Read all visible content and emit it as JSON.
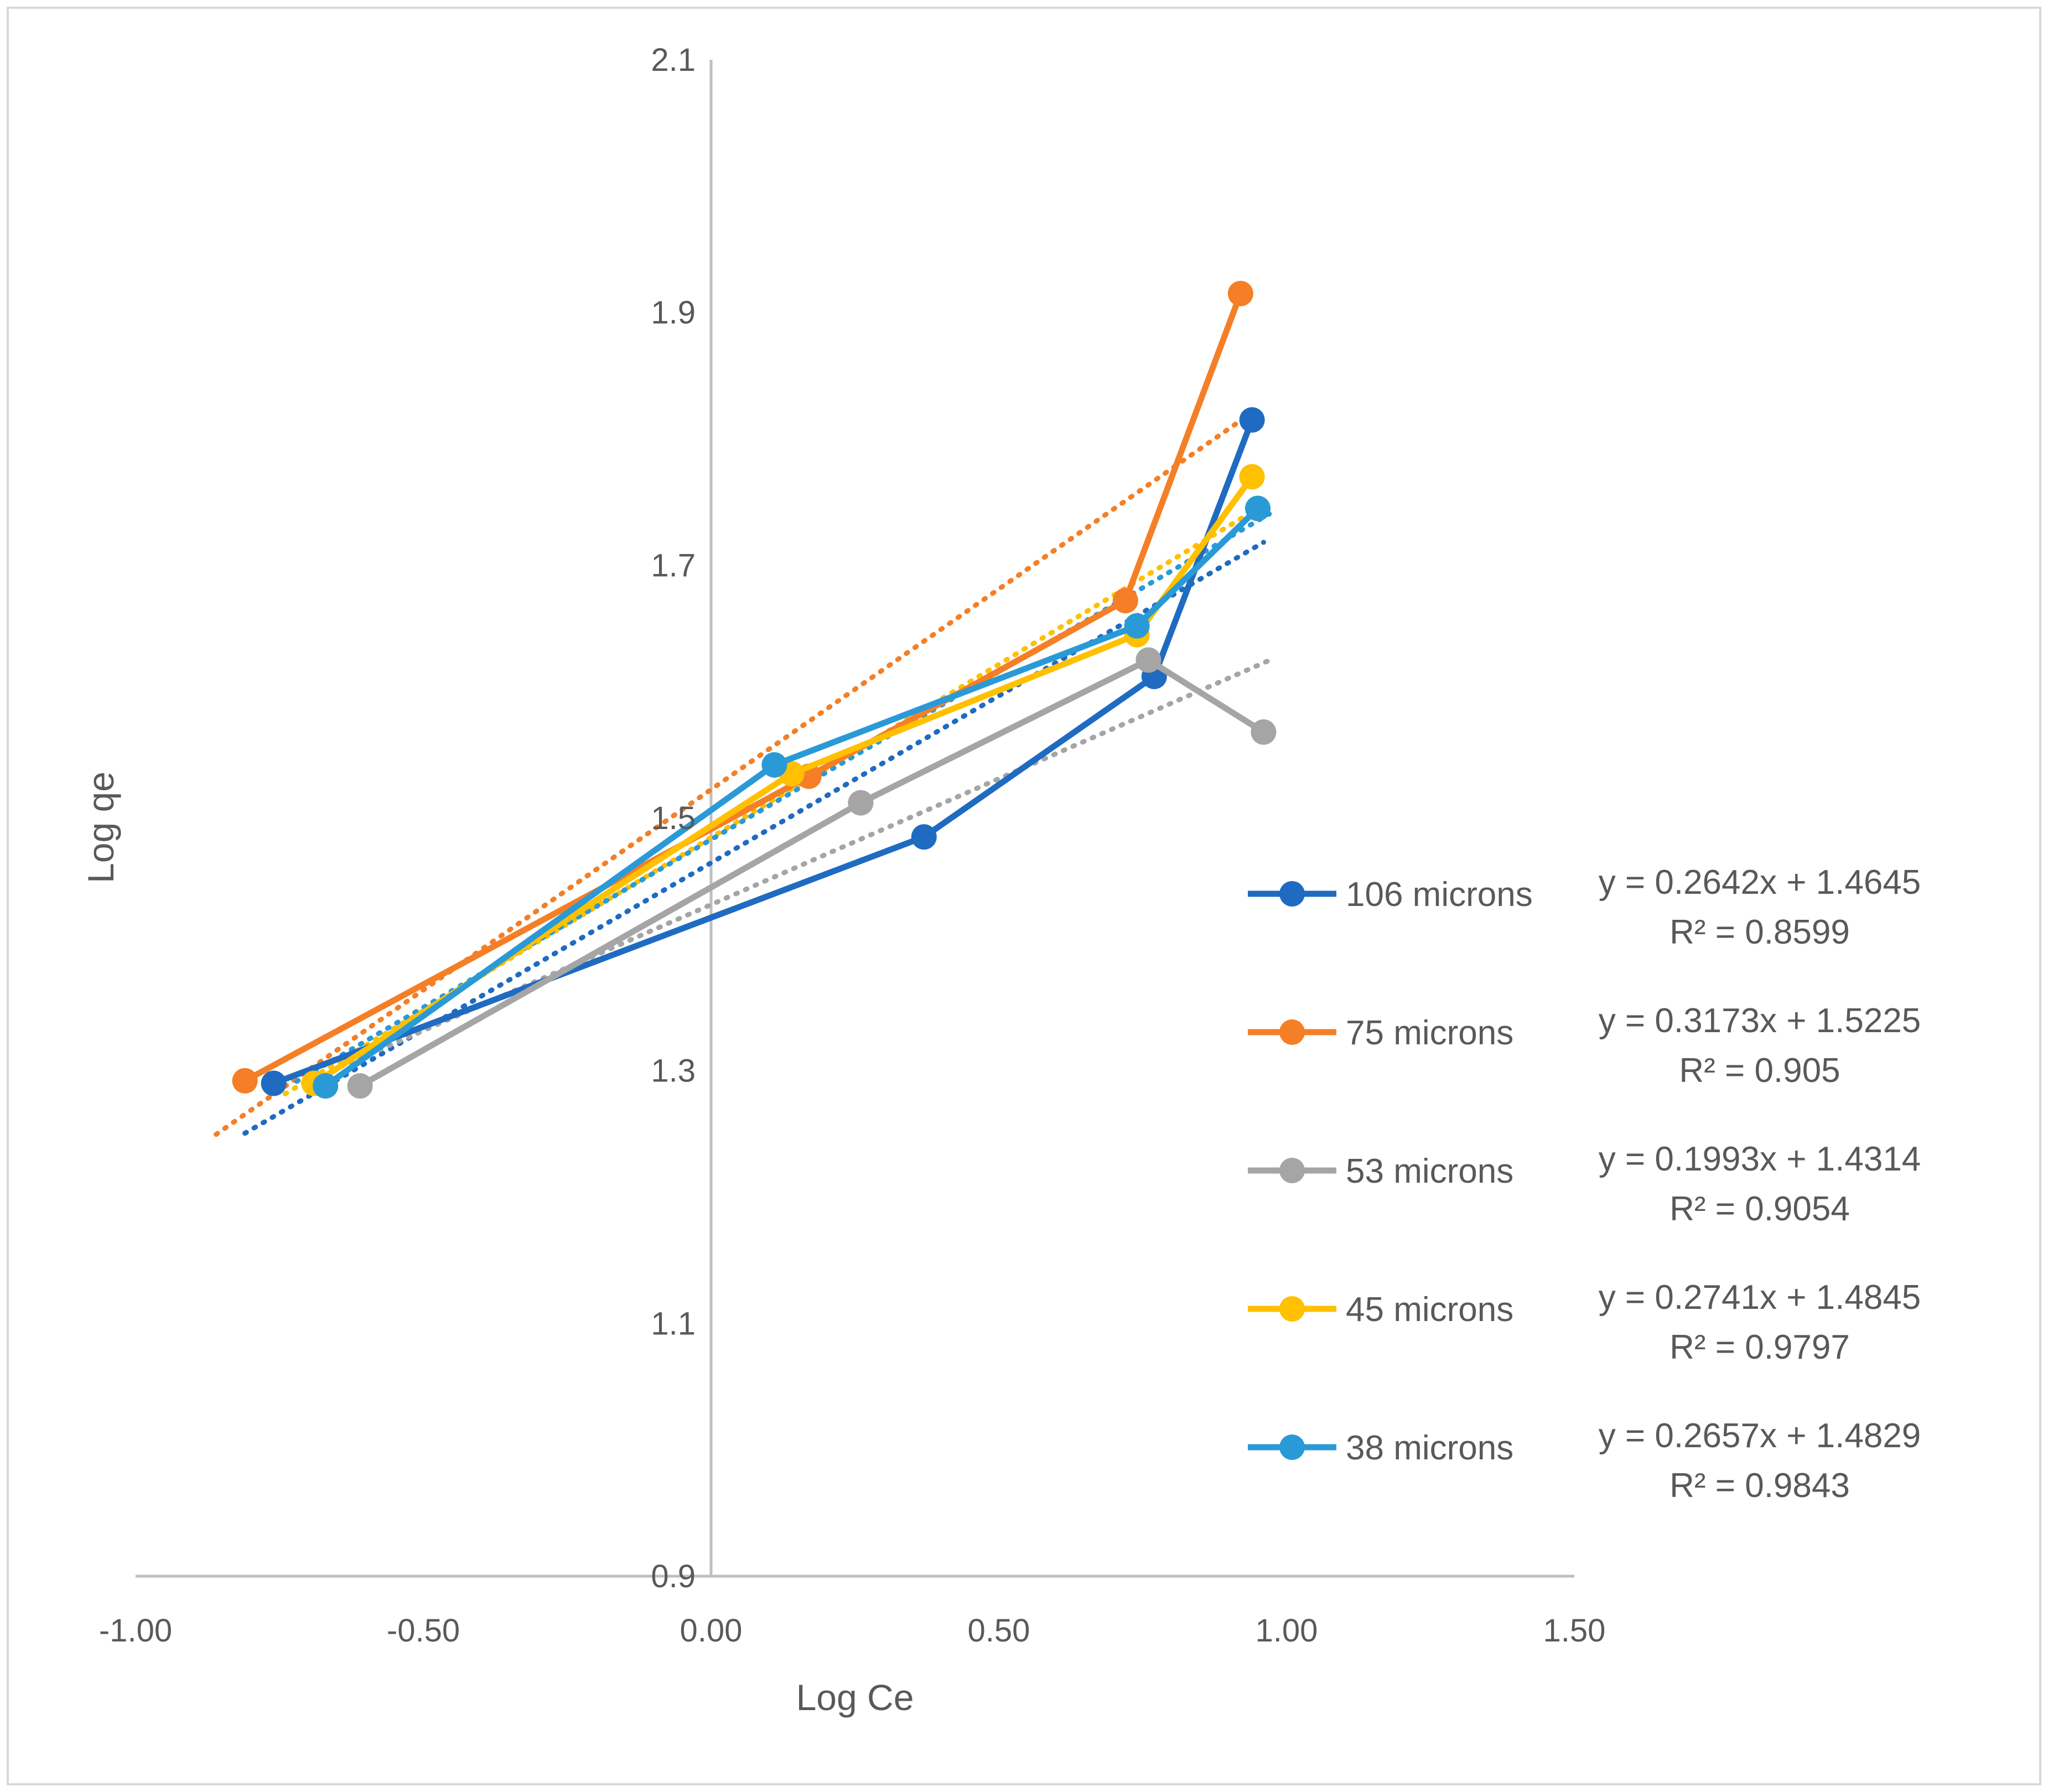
{
  "chart_data": {
    "type": "scatter",
    "title": "",
    "xlabel": "Log Ce",
    "ylabel": "Log qe",
    "xlim": [
      -1.0,
      1.5
    ],
    "ylim": [
      0.9,
      2.1
    ],
    "x_ticks": [
      -1.0,
      -0.5,
      0.0,
      0.5,
      1.0,
      1.5
    ],
    "x_tick_labels": [
      "-1.00",
      "-0.50",
      "0.00",
      "0.50",
      "1.00",
      "1.50"
    ],
    "y_ticks": [
      0.9,
      1.1,
      1.3,
      1.5,
      1.7,
      1.9,
      2.1
    ],
    "y_tick_labels": [
      "0.9",
      "1.1",
      "1.3",
      "1.5",
      "1.7",
      "1.9",
      "2.1"
    ],
    "grid": false,
    "legend_position": "right",
    "series": [
      {
        "name": "106 microns",
        "color": "#1F6BC1",
        "x": [
          -0.76,
          0.37,
          0.77,
          0.94
        ],
        "y": [
          1.29,
          1.485,
          1.612,
          1.815
        ],
        "trendline": {
          "type": "linear",
          "slope": 0.2642,
          "intercept": 1.4645
        },
        "equation": "y = 0.2642x + 1.4645",
        "r2": "R² = 0.8599"
      },
      {
        "name": "75 microns",
        "color": "#F47F26",
        "x": [
          -0.81,
          0.17,
          0.72,
          0.92
        ],
        "y": [
          1.292,
          1.533,
          1.672,
          1.915
        ],
        "trendline": {
          "type": "linear",
          "slope": 0.3173,
          "intercept": 1.5225
        },
        "equation": "y = 0.3173x + 1.5225",
        "r2": "R² = 0.905"
      },
      {
        "name": "53 microns",
        "color": "#A5A5A5",
        "x": [
          -0.61,
          0.26,
          0.76,
          0.96
        ],
        "y": [
          1.288,
          1.512,
          1.625,
          1.568
        ],
        "trendline": {
          "type": "linear",
          "slope": 0.1993,
          "intercept": 1.4314
        },
        "equation": "y = 0.1993x + 1.4314",
        "r2": "R² = 0.9054"
      },
      {
        "name": "45 microns",
        "color": "#FFC000",
        "x": [
          -0.69,
          0.14,
          0.74,
          0.94
        ],
        "y": [
          1.29,
          1.535,
          1.645,
          1.77
        ],
        "trendline": {
          "type": "linear",
          "slope": 0.2741,
          "intercept": 1.4845
        },
        "equation": "y = 0.2741x + 1.4845",
        "r2": "R² = 0.9797"
      },
      {
        "name": "38 microns",
        "color": "#2A9AD6",
        "x": [
          -0.67,
          0.11,
          0.74,
          0.95
        ],
        "y": [
          1.288,
          1.542,
          1.652,
          1.745
        ],
        "trendline": {
          "type": "linear",
          "slope": 0.2657,
          "intercept": 1.4829
        },
        "equation": "y = 0.2657x + 1.4829",
        "r2": "R² = 0.9843"
      }
    ]
  }
}
